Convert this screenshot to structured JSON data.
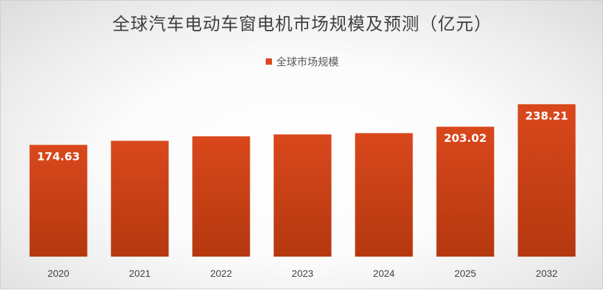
{
  "chart_data": {
    "type": "bar",
    "title": "全球汽车电动车窗电机市场规模及预测（亿元）",
    "legend": {
      "label": "全球市场规模",
      "position": "top"
    },
    "categories": [
      "2020",
      "2021",
      "2022",
      "2023",
      "2024",
      "2025",
      "2032"
    ],
    "series": [
      {
        "name": "全球市场规模",
        "values": [
          174.63,
          181,
          188,
          191,
          193,
          203.02,
          238.21
        ],
        "data_labels": [
          "174.63",
          "",
          "",
          "",
          "",
          "203.02",
          "238.21"
        ]
      }
    ],
    "ylim": [
      0,
      250
    ],
    "grid": false,
    "colors": {
      "bar_top": "#d9481c",
      "bar_bottom": "#b5380f",
      "label": "#ffffff"
    }
  }
}
